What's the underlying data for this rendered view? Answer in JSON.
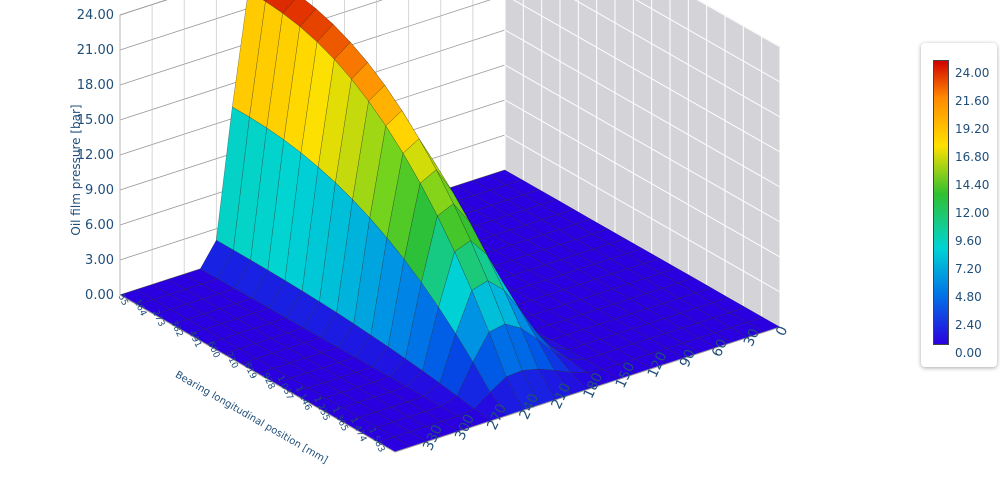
{
  "chart_data": {
    "type": "surface3d",
    "zlabel": "Oil film pressure [bar]",
    "ylabel": "Bearing longitudinal position [mm]",
    "xlabel": "",
    "z_ticks": [
      "0.00",
      "3.00",
      "6.00",
      "9.00",
      "12.00",
      "15.00",
      "18.00",
      "21.00",
      "24.00"
    ],
    "zlim": [
      0,
      24
    ],
    "y_ticks": [
      "55",
      "164",
      "273",
      "382",
      "491",
      "600",
      "710",
      "819",
      "928",
      "1 037",
      "1 146",
      "1 255",
      "1 365",
      "1 474",
      "1 583"
    ],
    "x_ticks": [
      "0",
      "30",
      "60",
      "90",
      "120",
      "150",
      "180",
      "210",
      "240",
      "270",
      "300",
      "330"
    ],
    "x_range": [
      0,
      360
    ],
    "y_range": [
      0,
      1638
    ],
    "peak": {
      "x": 217,
      "y": 55,
      "z": 24.0
    },
    "description_values": {
      "pressure_zero_outside_x": [
        140,
        280
      ],
      "max_pressure": 24.0
    },
    "grid": true,
    "legend": {
      "position": "right",
      "labels": [
        "24.00",
        "21.60",
        "19.20",
        "16.80",
        "14.40",
        "12.00",
        "9.60",
        "7.20",
        "4.80",
        "2.40",
        "0.00"
      ]
    }
  }
}
